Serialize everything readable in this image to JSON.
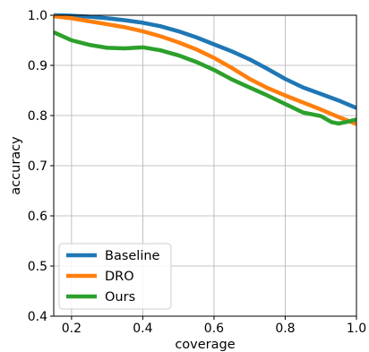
{
  "chart_data": {
    "type": "line",
    "title": "",
    "xlabel": "coverage",
    "ylabel": "accuracy",
    "xlim": [
      0.15,
      1.0
    ],
    "ylim": [
      0.4,
      1.0
    ],
    "x_ticks": [
      0.2,
      0.4,
      0.6,
      0.8,
      1.0
    ],
    "x_tick_labels": [
      "0.2",
      "0.4",
      "0.6",
      "0.8",
      "1.0"
    ],
    "y_ticks": [
      0.4,
      0.5,
      0.6,
      0.7,
      0.8,
      0.9,
      1.0
    ],
    "y_tick_labels": [
      "0.4",
      "0.5",
      "0.6",
      "0.7",
      "0.8",
      "0.9",
      "1.0"
    ],
    "grid": true,
    "legend_position": "lower-left",
    "series": [
      {
        "name": "Baseline",
        "color": "#1f77b4",
        "x": [
          0.15,
          0.2,
          0.25,
          0.3,
          0.35,
          0.4,
          0.45,
          0.5,
          0.55,
          0.6,
          0.65,
          0.7,
          0.75,
          0.8,
          0.85,
          0.9,
          0.95,
          1.0
        ],
        "y": [
          1.0,
          0.999,
          0.997,
          0.994,
          0.99,
          0.985,
          0.978,
          0.968,
          0.956,
          0.942,
          0.928,
          0.912,
          0.893,
          0.873,
          0.856,
          0.843,
          0.83,
          0.815
        ]
      },
      {
        "name": "DRO",
        "color": "#ff7f0e",
        "x": [
          0.15,
          0.2,
          0.25,
          0.3,
          0.35,
          0.4,
          0.45,
          0.5,
          0.55,
          0.6,
          0.65,
          0.7,
          0.75,
          0.8,
          0.85,
          0.9,
          0.95,
          1.0
        ],
        "y": [
          0.998,
          0.994,
          0.988,
          0.982,
          0.976,
          0.968,
          0.958,
          0.946,
          0.932,
          0.915,
          0.895,
          0.873,
          0.855,
          0.84,
          0.826,
          0.812,
          0.797,
          0.783
        ]
      },
      {
        "name": "Ours",
        "color": "#2ca02c",
        "x": [
          0.15,
          0.2,
          0.25,
          0.3,
          0.35,
          0.4,
          0.45,
          0.5,
          0.55,
          0.6,
          0.65,
          0.7,
          0.75,
          0.8,
          0.85,
          0.9,
          0.93,
          0.95,
          0.97,
          1.0
        ],
        "y": [
          0.966,
          0.95,
          0.941,
          0.935,
          0.934,
          0.936,
          0.93,
          0.92,
          0.907,
          0.891,
          0.872,
          0.856,
          0.84,
          0.823,
          0.806,
          0.799,
          0.787,
          0.784,
          0.787,
          0.792
        ]
      }
    ]
  }
}
